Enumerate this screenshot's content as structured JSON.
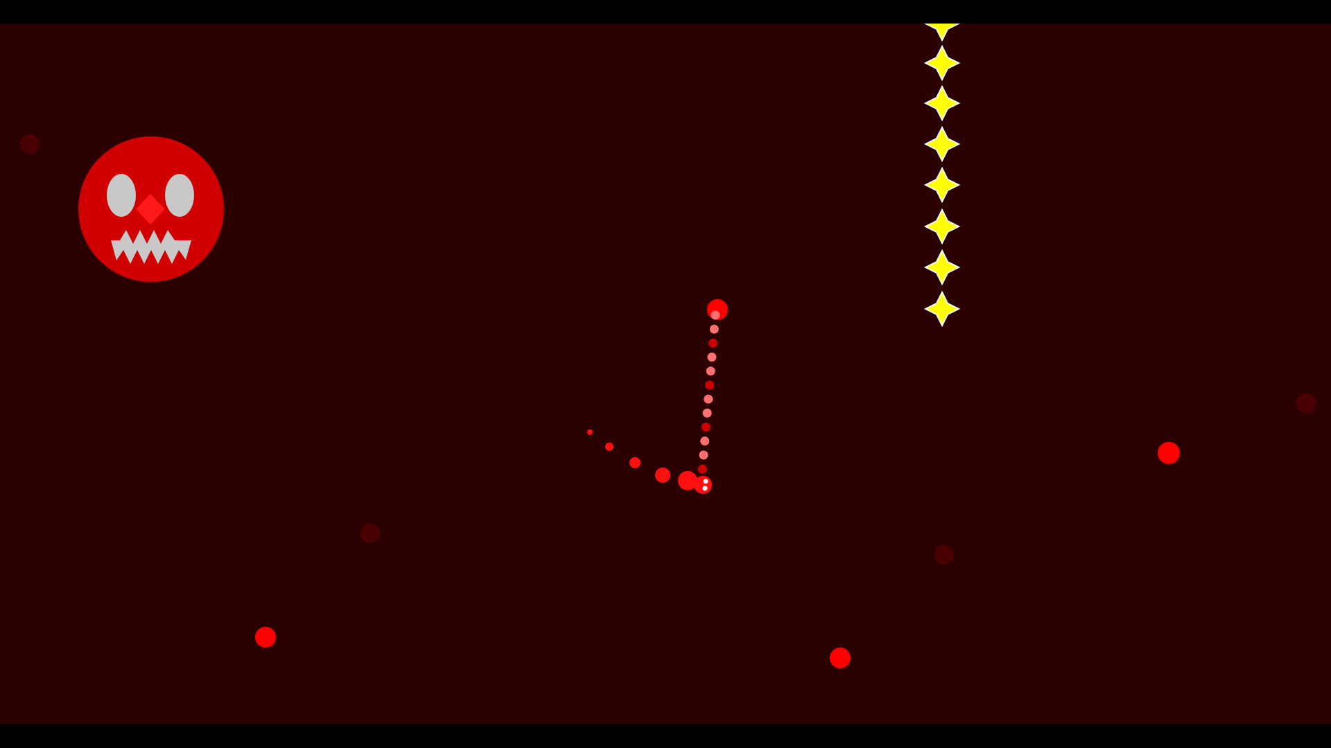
{
  "game": {
    "background_color": "#2a0000",
    "letterbox_color": "#000000",
    "boss": {
      "icon": "red-skull-face-boss",
      "body_color": "#d10000",
      "feature_color": "#c8c8c8",
      "nose_color": "#ff1a1a"
    },
    "hazards": {
      "star_color": "#ffff00",
      "star_outline": "#ffffff",
      "bullet_color": "#ff0000",
      "faint_bullet_color": "#4a0000"
    },
    "player": {
      "icon": "player-orb",
      "color": "#ff1010",
      "trail_light": "#ff7070",
      "trail_dark": "#cc0000"
    }
  }
}
